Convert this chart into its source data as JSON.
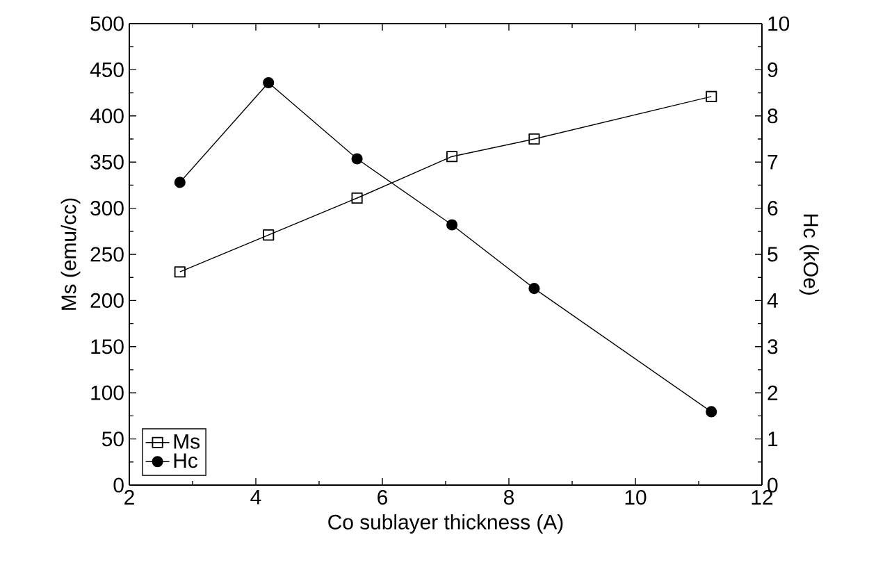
{
  "chart_data": {
    "type": "line",
    "xlabel": "Co sublayer thickness (A)",
    "ylabel": "Ms (emu/cc)",
    "y2label": "Hc (kOe)",
    "x": [
      2.8,
      4.2,
      5.6,
      7.1,
      8.4,
      11.2
    ],
    "series": [
      {
        "name": "Ms",
        "color": "#000000",
        "marker": "square",
        "values": [
          231,
          271,
          311,
          356,
          375,
          421
        ]
      },
      {
        "name": "Hc",
        "color": "#000000",
        "marker": "circle",
        "axis": "y2",
        "values": [
          6.56,
          8.72,
          7.07,
          5.64,
          4.26,
          1.59
        ]
      }
    ],
    "xlim": [
      2,
      12
    ],
    "xticks": [
      2,
      4,
      6,
      8,
      10,
      12
    ],
    "ylim": [
      0,
      500
    ],
    "yticks": [
      0,
      50,
      100,
      150,
      200,
      250,
      300,
      350,
      400,
      450,
      500
    ],
    "y2lim": [
      0,
      10
    ],
    "y2ticks": [
      0,
      1,
      2,
      3,
      4,
      5,
      6,
      7,
      8,
      9,
      10
    ],
    "legend": "bottom left",
    "grid": false,
    "line_style": "solid"
  }
}
